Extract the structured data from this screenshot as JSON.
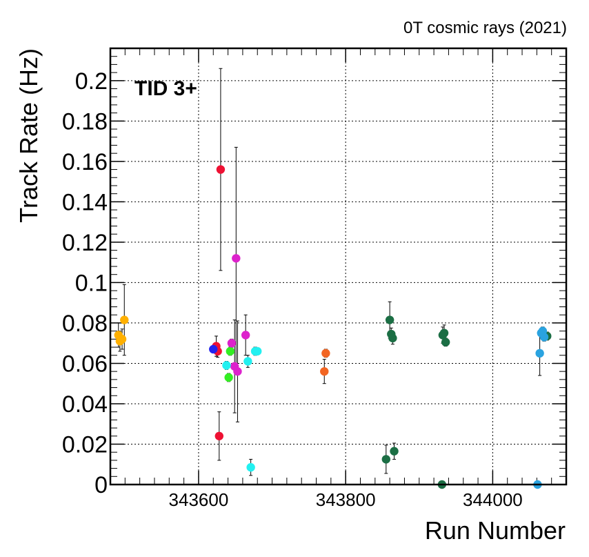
{
  "chart_data": {
    "type": "scatter",
    "title": "0T cosmic rays (2021)",
    "annotation": "TID 3+",
    "xlabel": "Run Number",
    "ylabel": "Track Rate (Hz)",
    "xlim": [
      343480,
      344100
    ],
    "ylim": [
      0,
      0.216
    ],
    "grid": true,
    "x_ticks": [
      343600,
      343800,
      344000
    ],
    "x_tick_labels": [
      "343600",
      "343800",
      "344000"
    ],
    "y_ticks": [
      0,
      0.02,
      0.04,
      0.06,
      0.08,
      0.1,
      0.12,
      0.14,
      0.16,
      0.18,
      0.2
    ],
    "y_tick_labels": [
      "0",
      "0.02",
      "0.04",
      "0.06",
      "0.08",
      "0.1",
      "0.12",
      "0.14",
      "0.16",
      "0.18",
      "0.2"
    ],
    "series": [
      {
        "color": "#ffb000",
        "points": [
          {
            "x": 343491,
            "y": 0.074,
            "err": 0.006
          },
          {
            "x": 343493,
            "y": 0.071,
            "err": 0.005
          },
          {
            "x": 343496,
            "y": 0.072,
            "err": 0.005
          },
          {
            "x": 343499,
            "y": 0.0815,
            "err": 0.0175
          }
        ]
      },
      {
        "color": "#ee1133",
        "points": [
          {
            "x": 343624,
            "y": 0.0685,
            "err": 0.005
          },
          {
            "x": 343626,
            "y": 0.066,
            "err": 0.003
          },
          {
            "x": 343628,
            "y": 0.024,
            "err": 0.012
          },
          {
            "x": 343630,
            "y": 0.156,
            "err": 0.05
          }
        ]
      },
      {
        "color": "#2222ee",
        "points": [
          {
            "x": 343620,
            "y": 0.067,
            "err": 0.001
          }
        ]
      },
      {
        "color": "#33ee22",
        "points": [
          {
            "x": 343641,
            "y": 0.053,
            "err": 0.002
          },
          {
            "x": 343643,
            "y": 0.066,
            "err": 0.002
          }
        ]
      },
      {
        "color": "#dd22cc",
        "points": [
          {
            "x": 343645,
            "y": 0.07,
            "err": 0.002
          },
          {
            "x": 343649,
            "y": 0.0585,
            "err": 0.023
          },
          {
            "x": 343651,
            "y": 0.112,
            "err": 0.055
          },
          {
            "x": 343653,
            "y": 0.056,
            "err": 0.025
          },
          {
            "x": 343664,
            "y": 0.074,
            "err": 0.01
          }
        ]
      },
      {
        "color": "#22f0f0",
        "points": [
          {
            "x": 343638,
            "y": 0.059,
            "err": 0.002
          },
          {
            "x": 343667,
            "y": 0.061,
            "err": 0.003
          },
          {
            "x": 343671,
            "y": 0.0085,
            "err": 0.004
          },
          {
            "x": 343677,
            "y": 0.066,
            "err": 0.002
          },
          {
            "x": 343680,
            "y": 0.066,
            "err": 0.001
          }
        ]
      },
      {
        "color": "#f26522",
        "points": [
          {
            "x": 343771,
            "y": 0.056,
            "err": 0.006
          },
          {
            "x": 343773,
            "y": 0.065,
            "err": 0.002
          }
        ]
      },
      {
        "color": "#1b6e44",
        "points": [
          {
            "x": 343855,
            "y": 0.0125,
            "err": 0.007
          },
          {
            "x": 343860,
            "y": 0.0815,
            "err": 0.009
          },
          {
            "x": 343862,
            "y": 0.0745,
            "err": 0.003
          },
          {
            "x": 343864,
            "y": 0.0725,
            "err": 0.003
          },
          {
            "x": 343866,
            "y": 0.0165,
            "err": 0.004
          },
          {
            "x": 343931,
            "y": 0.0,
            "err": 0.0005
          },
          {
            "x": 343932,
            "y": 0.074,
            "err": 0.004
          },
          {
            "x": 343934,
            "y": 0.075,
            "err": 0.004
          },
          {
            "x": 343936,
            "y": 0.0705,
            "err": 0.002
          },
          {
            "x": 344074,
            "y": 0.0735,
            "err": 0.002
          }
        ]
      },
      {
        "color": "#2aa3e0",
        "points": [
          {
            "x": 344061,
            "y": 0.0,
            "err": 0.0005
          },
          {
            "x": 344064,
            "y": 0.065,
            "err": 0.011
          },
          {
            "x": 344066,
            "y": 0.075,
            "err": 0.002
          },
          {
            "x": 344068,
            "y": 0.076,
            "err": 0.002
          },
          {
            "x": 344070,
            "y": 0.073,
            "err": 0.002
          }
        ]
      }
    ]
  }
}
